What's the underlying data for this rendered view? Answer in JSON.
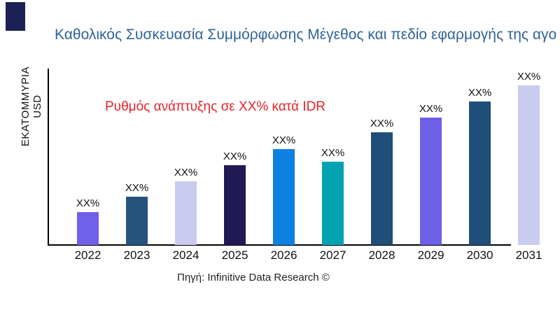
{
  "page": {
    "background": "#ffffff"
  },
  "decor": {
    "corner_block_color": "#1c2153"
  },
  "header": {
    "title": "Καθολικός Συσκευασία Συμμόρφωσης Μέγεθος και πεδίο εφαρμογής της αγο",
    "title_color": "#2f6398"
  },
  "chart_data": {
    "type": "bar",
    "title": "Καθολικός Συσκευασία Συμμόρφωσης Μέγεθος και πεδίο εφαρμογής της αγο",
    "ylabel": "ΕΚΑΤΟΜΜΥΡΙΑ USD",
    "xlabel": "",
    "annotation": {
      "text": "Ρυθμός ανάπτυξης σε XX% κατά IDR",
      "color": "#e8242a"
    },
    "categories": [
      "2022",
      "2023",
      "2024",
      "2025",
      "2026",
      "2027",
      "2028",
      "2029",
      "2030",
      "2031"
    ],
    "values": [
      47,
      69,
      91,
      114,
      137,
      119,
      161,
      182,
      205,
      228
    ],
    "values_unit": "relative-height-px (no numeric axis ticks shown)",
    "bar_labels": [
      "XX%",
      "XX%",
      "XX%",
      "XX%",
      "XX%",
      "XX%",
      "XX%",
      "XX%",
      "XX%",
      "XX%"
    ],
    "bar_colors": [
      "#6f61e8",
      "#24547d",
      "#c9ccef",
      "#211956",
      "#0e80e2",
      "#02a2b3",
      "#1f4e79",
      "#6d5fe8",
      "#1f4e79",
      "#c9ccef"
    ],
    "ylim": [
      0,
      252
    ],
    "grid": false,
    "legend": "none",
    "axis_color": "#000000",
    "label_color": "#111111"
  },
  "footer": {
    "source": "Πηγή: Infinitive Data Research ©"
  }
}
